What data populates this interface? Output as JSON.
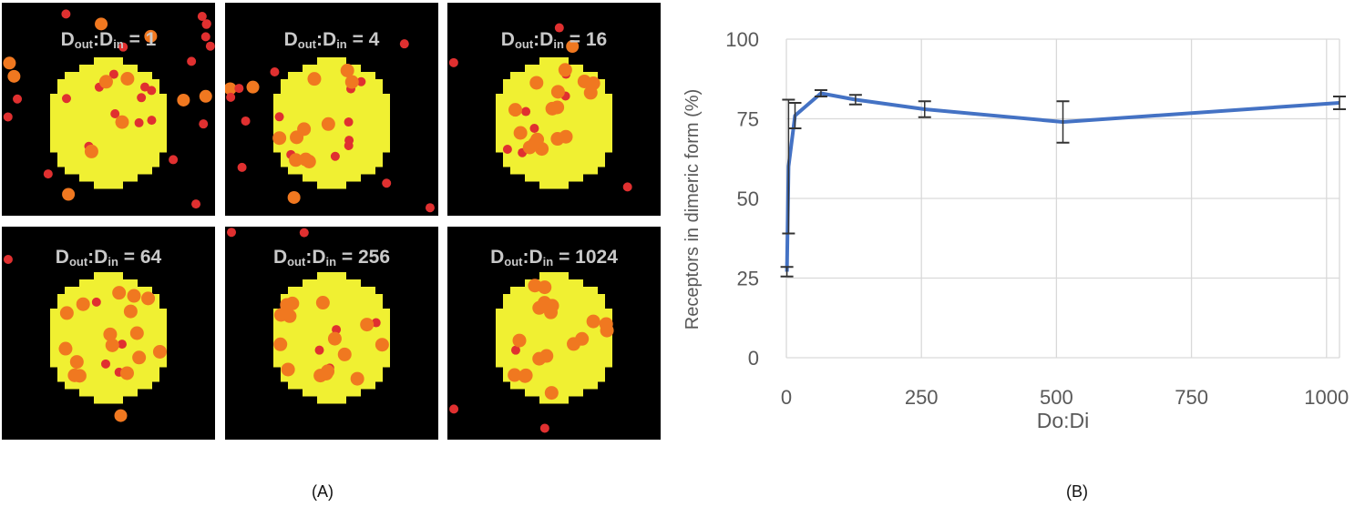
{
  "panels": [
    {
      "prefix": "D",
      "sub1": "out",
      "mid": ":D",
      "sub2": "in",
      "value": " = 1"
    },
    {
      "prefix": "D",
      "sub1": "out",
      "mid": ":D",
      "sub2": "in",
      "value": " = 4"
    },
    {
      "prefix": "D",
      "sub1": "out",
      "mid": ":D",
      "sub2": "in",
      "value": " = 16"
    },
    {
      "prefix": "D",
      "sub1": "out",
      "mid": ":D",
      "sub2": "in",
      "value": " = 64"
    },
    {
      "prefix": "D",
      "sub1": "out",
      "mid": ":D",
      "sub2": "in",
      "value": " = 256"
    },
    {
      "prefix": "D",
      "sub1": "out",
      "mid": ":D",
      "sub2": "in",
      "value": " = 1024"
    }
  ],
  "captions": {
    "a": "(A)",
    "b": "(B)"
  },
  "colors": {
    "domain": "#f0f032",
    "monomer": "#e03030",
    "dimer": "#f07820",
    "line": "#4472c4",
    "error_bar": "#333333"
  },
  "chart_data": {
    "type": "line",
    "xlabel": "Do:Di",
    "ylabel": "Receptors in dimeric form (%)",
    "xlim": [
      0,
      1024
    ],
    "ylim": [
      0,
      100
    ],
    "xticks": [
      0,
      250,
      500,
      750,
      1000
    ],
    "yticks": [
      0,
      25,
      50,
      75,
      100
    ],
    "grid": true,
    "series": [
      {
        "x": [
          1,
          4,
          16,
          64,
          128,
          256,
          512,
          1024
        ],
        "y": [
          27,
          60,
          76,
          83,
          81,
          78,
          74,
          80
        ],
        "err": [
          1.5,
          21,
          4,
          1,
          1.5,
          2.5,
          6.5,
          2
        ]
      }
    ]
  }
}
